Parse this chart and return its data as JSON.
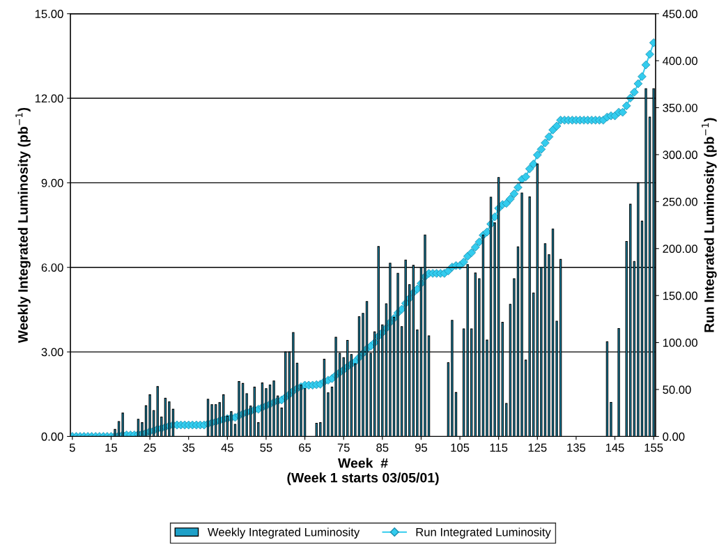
{
  "chart_data": {
    "type": "bar",
    "xlabel": "Week  #\n(Week 1 starts 03/05/01)",
    "ylabel": "Weekly Integrated Luminosity (pb$^{−1}$)",
    "y2label": "Run Integrated Luminosity (pb$^{−1}$)",
    "x": [
      5,
      6,
      7,
      8,
      9,
      10,
      11,
      12,
      13,
      14,
      15,
      16,
      17,
      18,
      19,
      20,
      21,
      22,
      23,
      24,
      25,
      26,
      27,
      28,
      29,
      30,
      31,
      32,
      33,
      34,
      35,
      36,
      37,
      38,
      39,
      40,
      41,
      42,
      43,
      44,
      45,
      46,
      47,
      48,
      49,
      50,
      51,
      52,
      53,
      54,
      55,
      56,
      57,
      58,
      59,
      60,
      61,
      62,
      63,
      64,
      65,
      66,
      67,
      68,
      69,
      70,
      71,
      72,
      73,
      74,
      75,
      76,
      77,
      78,
      79,
      80,
      81,
      82,
      83,
      84,
      85,
      86,
      87,
      88,
      89,
      90,
      91,
      92,
      93,
      94,
      95,
      96,
      97,
      98,
      99,
      100,
      101,
      102,
      103,
      104,
      105,
      106,
      107,
      108,
      109,
      110,
      111,
      112,
      113,
      114,
      115,
      116,
      117,
      118,
      119,
      120,
      121,
      122,
      123,
      124,
      125,
      126,
      127,
      128,
      129,
      130,
      131,
      132,
      133,
      134,
      135,
      136,
      137,
      138,
      139,
      140,
      141,
      142,
      143,
      144,
      145,
      146,
      147,
      148,
      149,
      150,
      151,
      152,
      153,
      154,
      155
    ],
    "series": [
      {
        "name": "Weekly Integrated Luminosity",
        "color": "#1ea0c8",
        "values": [
          0,
          0,
          0,
          0,
          0,
          0,
          0,
          0,
          0,
          0,
          0,
          0.25,
          0.53,
          0.83,
          0,
          0,
          0,
          0.61,
          0.49,
          1.09,
          1.48,
          0.92,
          1.77,
          0.69,
          1.36,
          1.23,
          0.97,
          0,
          0,
          0,
          0,
          0,
          0,
          0,
          0,
          1.32,
          1.13,
          1.13,
          1.2,
          1.48,
          0.72,
          0.88,
          0.43,
          1.95,
          1.88,
          1.52,
          1.08,
          1.75,
          0.49,
          1.9,
          1.7,
          1.83,
          1.97,
          1.44,
          1.01,
          3.0,
          3.0,
          3.69,
          2.6,
          1.83,
          1.7,
          0,
          0,
          0.47,
          0.49,
          2.74,
          1.55,
          1.75,
          3.52,
          2.95,
          2.8,
          3.41,
          2.91,
          2.58,
          4.25,
          4.37,
          4.79,
          2.95,
          3.71,
          6.74,
          3.96,
          4.71,
          6.15,
          4.23,
          5.79,
          3.9,
          6.26,
          5.39,
          6.07,
          3.78,
          6.0,
          7.15,
          3.57,
          0,
          0,
          0,
          0,
          2.62,
          4.12,
          1.56,
          0,
          3.82,
          6.1,
          3.82,
          5.8,
          5.6,
          7.15,
          3.42,
          8.49,
          7.58,
          9.19,
          4.05,
          1.17,
          4.69,
          5.6,
          6.73,
          8.64,
          2.71,
          8.5,
          5.09,
          9.67,
          6.0,
          6.84,
          6.45,
          7.36,
          4.09,
          6.28,
          0,
          0,
          0,
          0,
          0,
          0,
          0,
          0,
          0,
          0,
          0,
          3.36,
          1.21,
          0,
          3.83,
          0,
          6.92,
          8.24,
          6.21,
          9.0,
          7.64,
          12.34,
          11.33,
          12.34
        ]
      },
      {
        "name": "Run Integrated Luminosity",
        "type": "line",
        "axis": "y2",
        "color": "#33ccee",
        "marker": "diamond",
        "values": [
          0,
          0,
          0,
          0,
          0,
          0,
          0,
          0,
          0,
          0,
          0,
          0.3,
          0.8,
          1.6,
          1.6,
          1.6,
          1.6,
          2.2,
          2.7,
          3.8,
          5.3,
          6.2,
          8.0,
          8.7,
          10.0,
          11.3,
          12.2,
          12.2,
          12.2,
          12.2,
          12.2,
          12.2,
          12.2,
          12.2,
          12.2,
          13.5,
          14.6,
          15.6,
          16.8,
          18.3,
          19.0,
          19.9,
          20.3,
          22.2,
          24.1,
          25.6,
          26.7,
          28.5,
          29.0,
          30.9,
          32.6,
          34.4,
          36.4,
          37.8,
          38.8,
          41.8,
          44.8,
          48.5,
          51.1,
          52.9,
          54.6,
          54.6,
          54.6,
          55.1,
          55.6,
          58.3,
          59.9,
          61.6,
          65.2,
          68.1,
          70.9,
          74.3,
          77.2,
          79.8,
          84.1,
          88.5,
          93.3,
          96.2,
          99.9,
          106.7,
          110.6,
          115.3,
          121.5,
          125.7,
          131.5,
          135.4,
          141.7,
          147.1,
          153.1,
          156.9,
          162.9,
          170.1,
          173.6,
          173.6,
          173.6,
          173.6,
          173.6,
          176.2,
          180.3,
          181.9,
          181.9,
          185.7,
          191.8,
          195.6,
          201.4,
          207.0,
          214.2,
          217.6,
          226.1,
          233.7,
          242.9,
          246.9,
          248.1,
          252.8,
          258.3,
          265.1,
          273.7,
          276.4,
          284.9,
          290.0,
          299.7,
          305.7,
          312.5,
          319.0,
          326.3,
          330.4,
          336.7,
          336.7,
          336.7,
          336.7,
          336.7,
          336.7,
          336.7,
          336.7,
          336.7,
          336.7,
          336.7,
          336.7,
          340.0,
          341.3,
          341.3,
          345.1,
          345.1,
          352.0,
          360.3,
          366.5,
          375.5,
          383.1,
          395.5,
          406.8,
          419.1
        ]
      }
    ],
    "xlim": [
      4.5,
      155.5
    ],
    "xticks": [
      5,
      15,
      25,
      35,
      45,
      55,
      65,
      75,
      85,
      95,
      105,
      115,
      125,
      135,
      145,
      155
    ],
    "ylim": [
      0,
      15
    ],
    "yticks": [
      {
        "value": 0,
        "label": "0.00"
      },
      {
        "value": 3,
        "label": "3.00"
      },
      {
        "value": 6,
        "label": "6.00"
      },
      {
        "value": 9,
        "label": "9.00"
      },
      {
        "value": 12,
        "label": "12.00"
      },
      {
        "value": 15,
        "label": "15.00"
      }
    ],
    "y2lim": [
      0,
      450
    ],
    "y2ticks": [
      {
        "value": 0,
        "label": "0.00"
      },
      {
        "value": 50,
        "label": "50.00"
      },
      {
        "value": 100,
        "label": "100.00"
      },
      {
        "value": 150,
        "label": "150.00"
      },
      {
        "value": 200,
        "label": "200.00"
      },
      {
        "value": 250,
        "label": "250.00"
      },
      {
        "value": 300,
        "label": "300.00"
      },
      {
        "value": 350,
        "label": "350.00"
      },
      {
        "value": 400,
        "label": "400.00"
      },
      {
        "value": 450,
        "label": "450.00"
      }
    ],
    "grid": "y",
    "legend": "bottom"
  }
}
